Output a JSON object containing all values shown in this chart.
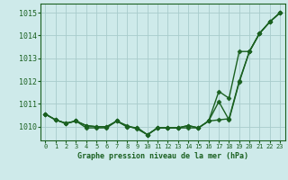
{
  "title": "Graphe pression niveau de la mer (hPa)",
  "background_color": "#ceeaea",
  "grid_color": "#a8cccc",
  "line_color": "#1a6020",
  "xlim": [
    -0.5,
    23.5
  ],
  "ylim": [
    1009.4,
    1015.4
  ],
  "yticks": [
    1010,
    1011,
    1012,
    1013,
    1014,
    1015
  ],
  "xticks": [
    0,
    1,
    2,
    3,
    4,
    5,
    6,
    7,
    8,
    9,
    10,
    11,
    12,
    13,
    14,
    15,
    16,
    17,
    18,
    19,
    20,
    21,
    22,
    23
  ],
  "series1": [
    1010.55,
    1010.3,
    1010.15,
    1010.25,
    1010.05,
    1010.0,
    1010.0,
    1010.25,
    1010.0,
    1009.95,
    1009.65,
    1009.95,
    1009.95,
    1009.95,
    1010.05,
    1009.95,
    1010.25,
    1011.55,
    1011.25,
    1013.3,
    1013.3,
    1014.1,
    1014.6,
    1015.0
  ],
  "series2": [
    1010.55,
    1010.3,
    1010.15,
    1010.25,
    1010.05,
    1010.0,
    1010.0,
    1010.25,
    1010.0,
    1009.95,
    1009.65,
    1009.95,
    1009.95,
    1009.95,
    1010.05,
    1009.95,
    1010.25,
    1011.1,
    1010.3,
    1011.95,
    1013.3,
    1014.1,
    1014.6,
    1015.0
  ],
  "series3": [
    1010.55,
    1010.3,
    1010.15,
    1010.25,
    1009.95,
    1009.95,
    1009.95,
    1010.25,
    1010.05,
    1009.9,
    1009.65,
    1009.95,
    1009.95,
    1009.95,
    1009.95,
    1009.95,
    1010.25,
    1010.3,
    1010.35,
    1012.0,
    1013.3,
    1014.1,
    1014.6,
    1015.0
  ],
  "marker": "D",
  "marker_size": 2.5,
  "linewidth": 1.0
}
